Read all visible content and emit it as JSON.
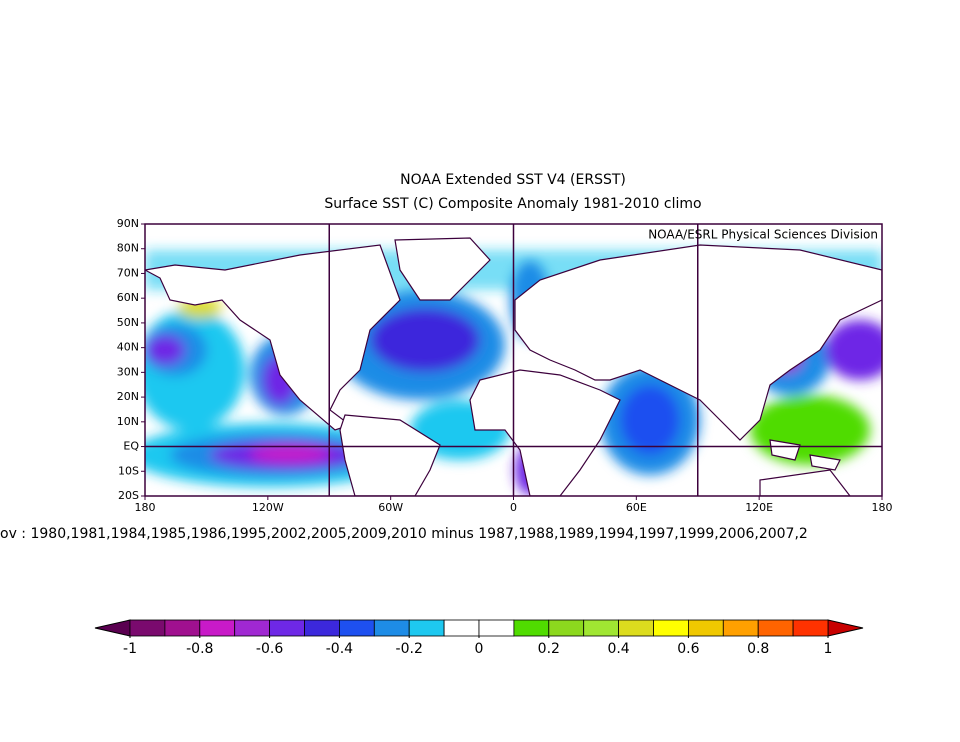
{
  "chart_data": {
    "type": "map",
    "title": "NOAA Extended SST V4 (ERSST)",
    "subtitle": "Surface SST (C) Composite Anomaly 1981-2010 climo",
    "credit": "NOAA/ESRL Physical Sciences Division",
    "note": "ov : 1980,1981,1984,1985,1986,1995,2002,2005,2009,2010  minus 1987,1988,1989,1994,1997,1999,2006,2007,2",
    "xlim": [
      -180,
      180
    ],
    "ylim": [
      -20,
      90
    ],
    "xticks": [
      {
        "value": -180,
        "label": "180"
      },
      {
        "value": -120,
        "label": "120W"
      },
      {
        "value": -60,
        "label": "60W"
      },
      0,
      {
        "value": 60,
        "label": "60E"
      },
      {
        "value": 120,
        "label": "120E"
      },
      180
    ],
    "yticks": [
      {
        "value": -20,
        "label": "20S"
      },
      {
        "value": -10,
        "label": "10S"
      },
      {
        "value": 0,
        "label": "EQ"
      },
      {
        "value": 10,
        "label": "10N"
      },
      {
        "value": 20,
        "label": "20N"
      },
      {
        "value": 30,
        "label": "30N"
      },
      {
        "value": 40,
        "label": "40N"
      },
      {
        "value": 50,
        "label": "50N"
      },
      {
        "value": 60,
        "label": "60N"
      },
      {
        "value": 70,
        "label": "70N"
      },
      {
        "value": 80,
        "label": "80N"
      },
      {
        "value": 90,
        "label": "90N"
      }
    ],
    "gridlines": {
      "lon": [
        -90,
        0,
        90
      ],
      "lat": [
        0
      ]
    },
    "colorbar": {
      "range": [
        -1,
        1
      ],
      "ticks": [
        -1,
        -0.8,
        -0.6,
        -0.4,
        -0.2,
        0,
        0.2,
        0.4,
        0.6,
        0.8,
        1
      ],
      "colors": [
        "#7a0a6e",
        "#a0108f",
        "#c81ac8",
        "#a028d2",
        "#6e28e6",
        "#3c28dc",
        "#1e50f0",
        "#1e8ce6",
        "#1ec8f0",
        "#ffffff",
        "#ffffff",
        "#50dc00",
        "#8cd81e",
        "#a0e632",
        "#dcdc1e",
        "#ffff00",
        "#f0c800",
        "#ffa000",
        "#ff6400",
        "#ff3200"
      ],
      "under_color": "#5a0050",
      "over_color": "#c80000"
    }
  }
}
